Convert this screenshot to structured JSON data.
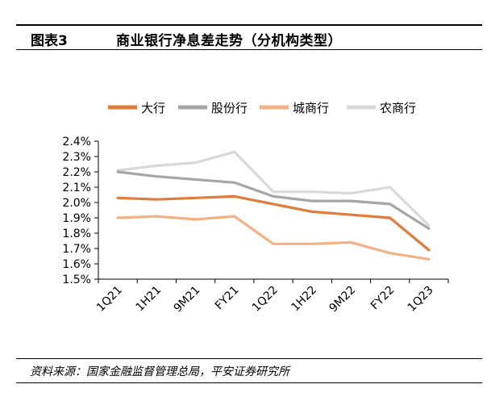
{
  "header": {
    "figure_label": "图表3",
    "title": "商业银行净息差走势（分机构类型）"
  },
  "footer": {
    "source": "资料来源：国家金融监督管理总局，平安证券研究所"
  },
  "chart_data": {
    "type": "line",
    "title": "",
    "xlabel": "",
    "ylabel": "",
    "categories": [
      "1Q21",
      "1H21",
      "9M21",
      "FY21",
      "1Q22",
      "1H22",
      "9M22",
      "FY22",
      "1Q23"
    ],
    "ylim": [
      1.5,
      2.4
    ],
    "yticks": [
      "2.4%",
      "2.3%",
      "2.2%",
      "2.1%",
      "2.0%",
      "1.9%",
      "1.8%",
      "1.7%",
      "1.6%",
      "1.5%"
    ],
    "ytick_values": [
      2.4,
      2.3,
      2.2,
      2.1,
      2.0,
      1.9,
      1.8,
      1.7,
      1.6,
      1.5
    ],
    "legend_position": "top",
    "grid": false,
    "series": [
      {
        "name": "大行",
        "color": "#e07b39",
        "values": [
          2.03,
          2.02,
          2.03,
          2.04,
          1.99,
          1.94,
          1.92,
          1.9,
          1.69
        ]
      },
      {
        "name": "股份行",
        "color": "#a6a6a6",
        "values": [
          2.2,
          2.17,
          2.15,
          2.13,
          2.04,
          2.01,
          2.01,
          1.99,
          1.83
        ]
      },
      {
        "name": "城商行",
        "color": "#f4b183",
        "values": [
          1.9,
          1.91,
          1.89,
          1.91,
          1.73,
          1.73,
          1.74,
          1.67,
          1.63
        ]
      },
      {
        "name": "农商行",
        "color": "#d9d9d9",
        "values": [
          2.21,
          2.24,
          2.26,
          2.33,
          2.07,
          2.07,
          2.06,
          2.1,
          1.85
        ]
      }
    ]
  }
}
